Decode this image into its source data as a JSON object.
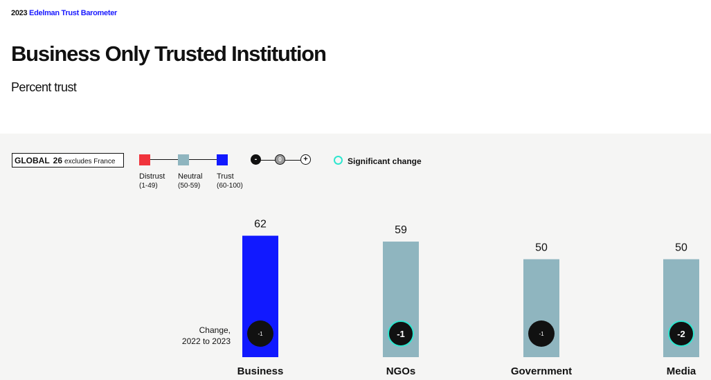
{
  "brand": {
    "year": "2023",
    "name": "Edelman Trust Barometer"
  },
  "title": "Business Only Trusted Institution",
  "subtitle": "Percent trust",
  "legend": {
    "global_label": "GLOBAL",
    "global_count": "26",
    "global_note": "excludes France",
    "scale": [
      {
        "label": "Distrust",
        "range": "(1-49)",
        "color": "#f0343c"
      },
      {
        "label": "Neutral",
        "range": "(50-59)",
        "color": "#8fb5bf"
      },
      {
        "label": "Trust",
        "range": "(60-100)",
        "color": "#1119ff"
      }
    ],
    "change_symbols": {
      "minus": "-",
      "zero": "0",
      "plus": "+"
    },
    "significant_label": "Significant change"
  },
  "change_note": {
    "line1": "Change,",
    "line2": "2022 to 2023"
  },
  "colors": {
    "trust": "#1119ff",
    "neutral": "#8fb5bf",
    "distrust": "#f0343c",
    "significant": "#2ee6cf",
    "change_circle": "#111111"
  },
  "chart_data": {
    "type": "bar",
    "categories": [
      "Business",
      "NGOs",
      "Government",
      "Media"
    ],
    "values": [
      62,
      59,
      50,
      50
    ],
    "change": [
      "-1",
      "-1",
      "-1",
      "-2"
    ],
    "significant": [
      false,
      true,
      false,
      true
    ],
    "band": [
      "trust",
      "neutral",
      "neutral",
      "neutral"
    ],
    "title": "",
    "ylim": [
      0,
      100
    ],
    "grid": false
  }
}
